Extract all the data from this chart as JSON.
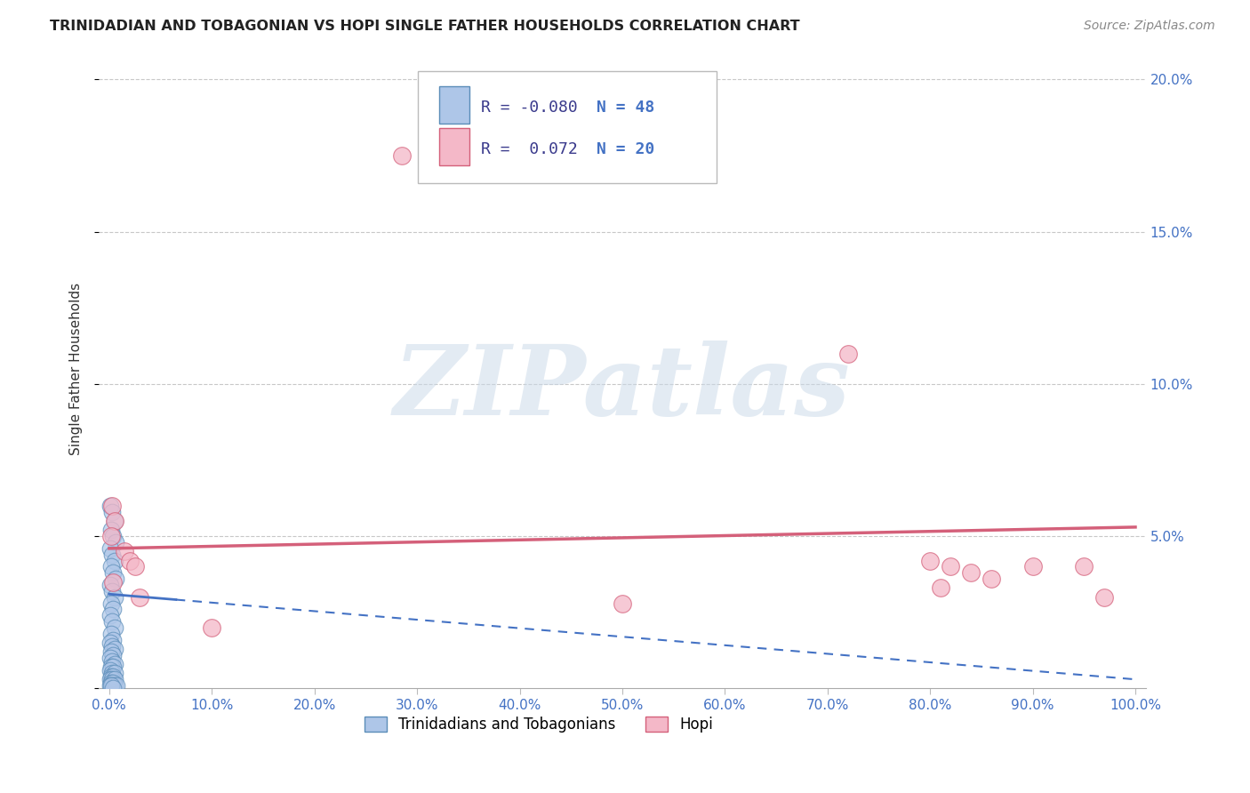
{
  "title": "TRINIDADIAN AND TOBAGONIAN VS HOPI SINGLE FATHER HOUSEHOLDS CORRELATION CHART",
  "source": "Source: ZipAtlas.com",
  "ylabel": "Single Father Households",
  "xlim": [
    -0.01,
    1.01
  ],
  "ylim": [
    0.0,
    0.21
  ],
  "xticks": [
    0.0,
    0.1,
    0.2,
    0.3,
    0.4,
    0.5,
    0.6,
    0.7,
    0.8,
    0.9,
    1.0
  ],
  "xticklabels": [
    "0.0%",
    "10.0%",
    "20.0%",
    "30.0%",
    "40.0%",
    "50.0%",
    "60.0%",
    "70.0%",
    "80.0%",
    "90.0%",
    "100.0%"
  ],
  "yticks": [
    0.0,
    0.05,
    0.1,
    0.15,
    0.2
  ],
  "yticklabels": [
    "",
    "5.0%",
    "10.0%",
    "15.0%",
    "20.0%"
  ],
  "blue_fill": "#aec6e8",
  "blue_edge": "#5b8db8",
  "pink_fill": "#f4b8c8",
  "pink_edge": "#d4607a",
  "blue_line_color": "#4472c4",
  "pink_line_color": "#d4607a",
  "grid_color": "#c8c8c8",
  "background_color": "#ffffff",
  "blue_R": -0.08,
  "blue_N": 48,
  "pink_R": 0.072,
  "pink_N": 20,
  "blue_dots": [
    [
      0.001,
      0.06
    ],
    [
      0.003,
      0.058
    ],
    [
      0.005,
      0.055
    ],
    [
      0.002,
      0.052
    ],
    [
      0.004,
      0.05
    ],
    [
      0.006,
      0.048
    ],
    [
      0.001,
      0.046
    ],
    [
      0.003,
      0.044
    ],
    [
      0.005,
      0.042
    ],
    [
      0.002,
      0.04
    ],
    [
      0.004,
      0.038
    ],
    [
      0.006,
      0.036
    ],
    [
      0.001,
      0.034
    ],
    [
      0.003,
      0.032
    ],
    [
      0.005,
      0.03
    ],
    [
      0.002,
      0.028
    ],
    [
      0.004,
      0.026
    ],
    [
      0.001,
      0.024
    ],
    [
      0.003,
      0.022
    ],
    [
      0.005,
      0.02
    ],
    [
      0.002,
      0.018
    ],
    [
      0.004,
      0.016
    ],
    [
      0.001,
      0.015
    ],
    [
      0.003,
      0.014
    ],
    [
      0.005,
      0.013
    ],
    [
      0.002,
      0.012
    ],
    [
      0.004,
      0.011
    ],
    [
      0.001,
      0.01
    ],
    [
      0.003,
      0.009
    ],
    [
      0.005,
      0.008
    ],
    [
      0.002,
      0.007
    ],
    [
      0.004,
      0.007
    ],
    [
      0.001,
      0.006
    ],
    [
      0.003,
      0.005
    ],
    [
      0.005,
      0.005
    ],
    [
      0.002,
      0.004
    ],
    [
      0.004,
      0.004
    ],
    [
      0.001,
      0.003
    ],
    [
      0.003,
      0.003
    ],
    [
      0.005,
      0.003
    ],
    [
      0.002,
      0.002
    ],
    [
      0.004,
      0.002
    ],
    [
      0.001,
      0.001
    ],
    [
      0.003,
      0.001
    ],
    [
      0.005,
      0.001
    ],
    [
      0.007,
      0.001
    ],
    [
      0.002,
      0.001
    ],
    [
      0.004,
      0.0
    ]
  ],
  "pink_dots": [
    [
      0.285,
      0.175
    ],
    [
      0.003,
      0.06
    ],
    [
      0.005,
      0.055
    ],
    [
      0.002,
      0.05
    ],
    [
      0.015,
      0.045
    ],
    [
      0.02,
      0.042
    ],
    [
      0.025,
      0.04
    ],
    [
      0.004,
      0.035
    ],
    [
      0.03,
      0.03
    ],
    [
      0.5,
      0.028
    ],
    [
      0.72,
      0.11
    ],
    [
      0.8,
      0.042
    ],
    [
      0.82,
      0.04
    ],
    [
      0.84,
      0.038
    ],
    [
      0.86,
      0.036
    ],
    [
      0.81,
      0.033
    ],
    [
      0.9,
      0.04
    ],
    [
      0.95,
      0.04
    ],
    [
      0.97,
      0.03
    ],
    [
      0.1,
      0.02
    ]
  ],
  "blue_line_x0": 0.0,
  "blue_line_x_solid_end": 0.065,
  "blue_line_x1": 1.0,
  "blue_line_y0": 0.031,
  "blue_line_y1": 0.003,
  "pink_line_x0": 0.0,
  "pink_line_x1": 1.0,
  "pink_line_y0": 0.046,
  "pink_line_y1": 0.053,
  "watermark_text": "ZIPatlas",
  "legend_blue_label": "Trinidadians and Tobagonians",
  "legend_pink_label": "Hopi",
  "legend_text_color": "#3a3a8c",
  "legend_N_color": "#4472c4",
  "title_color": "#222222",
  "source_color": "#888888",
  "axis_tick_color": "#4472c4",
  "watermark_color": "#c8d8e8"
}
